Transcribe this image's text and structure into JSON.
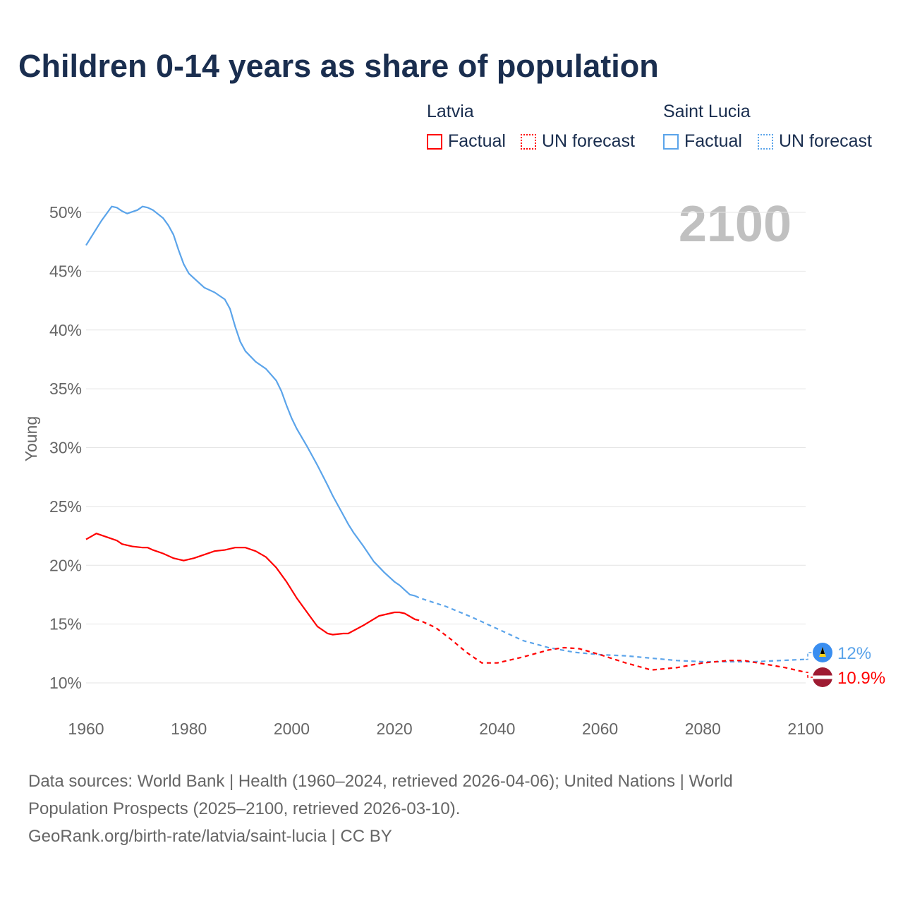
{
  "title": "Children 0-14 years as share of population",
  "legend": {
    "groups": [
      {
        "name": "Latvia",
        "color": "#ff0000",
        "factual": "Factual",
        "forecast": "UN forecast"
      },
      {
        "name": "Saint Lucia",
        "color": "#5ba4ea",
        "factual": "Factual",
        "forecast": "UN forecast"
      }
    ]
  },
  "year_label": "2100",
  "footer": {
    "line1": "Data sources: World Bank | Health (1960–2024, retrieved 2026-04-06); United Nations | World",
    "line2": "Population Prospects (2025–2100, retrieved 2026-03-10).",
    "line3": "GeoRank.org/birth-rate/latvia/saint-lucia | CC BY"
  },
  "chart_data": {
    "type": "line",
    "title": "Children 0-14 years as share of population",
    "ylabel": "Young",
    "xlabel": "",
    "xlim": [
      1960,
      2100
    ],
    "ylim": [
      10,
      50
    ],
    "xticks": [
      "1960",
      "1980",
      "2000",
      "2020",
      "2040",
      "2060",
      "2080",
      "2100"
    ],
    "yticks": [
      "10%",
      "15%",
      "20%",
      "25%",
      "30%",
      "35%",
      "40%",
      "45%",
      "50%"
    ],
    "grid": true,
    "legend_position": "top-right",
    "series": [
      {
        "name": "Saint Lucia",
        "color": "#5ba4ea",
        "end_label": "12%",
        "factual": [
          [
            1960,
            47.2
          ],
          [
            1962,
            48.6
          ],
          [
            1963,
            49.3
          ],
          [
            1965,
            50.5
          ],
          [
            1966,
            50.4
          ],
          [
            1967,
            50.1
          ],
          [
            1968,
            49.9
          ],
          [
            1970,
            50.2
          ],
          [
            1971,
            50.5
          ],
          [
            1972,
            50.4
          ],
          [
            1973,
            50.2
          ],
          [
            1975,
            49.5
          ],
          [
            1976,
            48.9
          ],
          [
            1977,
            48.1
          ],
          [
            1978,
            46.8
          ],
          [
            1979,
            45.6
          ],
          [
            1980,
            44.8
          ],
          [
            1981,
            44.4
          ],
          [
            1983,
            43.6
          ],
          [
            1985,
            43.2
          ],
          [
            1986,
            42.9
          ],
          [
            1987,
            42.6
          ],
          [
            1988,
            41.8
          ],
          [
            1989,
            40.3
          ],
          [
            1990,
            39.0
          ],
          [
            1991,
            38.2
          ],
          [
            1993,
            37.3
          ],
          [
            1995,
            36.7
          ],
          [
            1997,
            35.7
          ],
          [
            1998,
            34.8
          ],
          [
            1999,
            33.6
          ],
          [
            2000,
            32.5
          ],
          [
            2001,
            31.6
          ],
          [
            2003,
            30.1
          ],
          [
            2005,
            28.5
          ],
          [
            2007,
            26.8
          ],
          [
            2008,
            25.9
          ],
          [
            2010,
            24.3
          ],
          [
            2011,
            23.5
          ],
          [
            2012,
            22.8
          ],
          [
            2014,
            21.6
          ],
          [
            2016,
            20.3
          ],
          [
            2018,
            19.4
          ],
          [
            2020,
            18.6
          ],
          [
            2021,
            18.3
          ],
          [
            2022,
            17.9
          ],
          [
            2023,
            17.5
          ],
          [
            2024,
            17.4
          ]
        ],
        "forecast": [
          [
            2024,
            17.4
          ],
          [
            2025,
            17.2
          ],
          [
            2030,
            16.5
          ],
          [
            2035,
            15.6
          ],
          [
            2040,
            14.6
          ],
          [
            2045,
            13.6
          ],
          [
            2050,
            13.0
          ],
          [
            2055,
            12.6
          ],
          [
            2060,
            12.4
          ],
          [
            2065,
            12.3
          ],
          [
            2070,
            12.1
          ],
          [
            2075,
            11.9
          ],
          [
            2080,
            11.8
          ],
          [
            2085,
            11.8
          ],
          [
            2090,
            11.8
          ],
          [
            2095,
            11.9
          ],
          [
            2100,
            12.0
          ]
        ]
      },
      {
        "name": "Latvia",
        "color": "#ff0000",
        "end_label": "10.9%",
        "factual": [
          [
            1960,
            22.2
          ],
          [
            1962,
            22.7
          ],
          [
            1964,
            22.4
          ],
          [
            1966,
            22.1
          ],
          [
            1967,
            21.8
          ],
          [
            1969,
            21.6
          ],
          [
            1971,
            21.5
          ],
          [
            1972,
            21.5
          ],
          [
            1973,
            21.3
          ],
          [
            1975,
            21.0
          ],
          [
            1977,
            20.6
          ],
          [
            1979,
            20.4
          ],
          [
            1981,
            20.6
          ],
          [
            1983,
            20.9
          ],
          [
            1985,
            21.2
          ],
          [
            1987,
            21.3
          ],
          [
            1989,
            21.5
          ],
          [
            1990,
            21.5
          ],
          [
            1991,
            21.5
          ],
          [
            1993,
            21.2
          ],
          [
            1995,
            20.7
          ],
          [
            1997,
            19.8
          ],
          [
            1999,
            18.6
          ],
          [
            2001,
            17.2
          ],
          [
            2003,
            16.0
          ],
          [
            2005,
            14.8
          ],
          [
            2007,
            14.2
          ],
          [
            2008,
            14.1
          ],
          [
            2010,
            14.2
          ],
          [
            2011,
            14.2
          ],
          [
            2014,
            14.9
          ],
          [
            2017,
            15.7
          ],
          [
            2020,
            16.0
          ],
          [
            2021,
            16.0
          ],
          [
            2022,
            15.9
          ],
          [
            2024,
            15.4
          ]
        ],
        "forecast": [
          [
            2024,
            15.4
          ],
          [
            2025,
            15.3
          ],
          [
            2028,
            14.7
          ],
          [
            2031,
            13.7
          ],
          [
            2034,
            12.6
          ],
          [
            2037,
            11.7
          ],
          [
            2040,
            11.7
          ],
          [
            2045,
            12.2
          ],
          [
            2050,
            12.8
          ],
          [
            2053,
            13.0
          ],
          [
            2056,
            12.9
          ],
          [
            2060,
            12.4
          ],
          [
            2065,
            11.7
          ],
          [
            2070,
            11.1
          ],
          [
            2075,
            11.3
          ],
          [
            2080,
            11.7
          ],
          [
            2085,
            11.9
          ],
          [
            2088,
            11.9
          ],
          [
            2092,
            11.6
          ],
          [
            2096,
            11.3
          ],
          [
            2100,
            10.9
          ]
        ]
      }
    ]
  }
}
